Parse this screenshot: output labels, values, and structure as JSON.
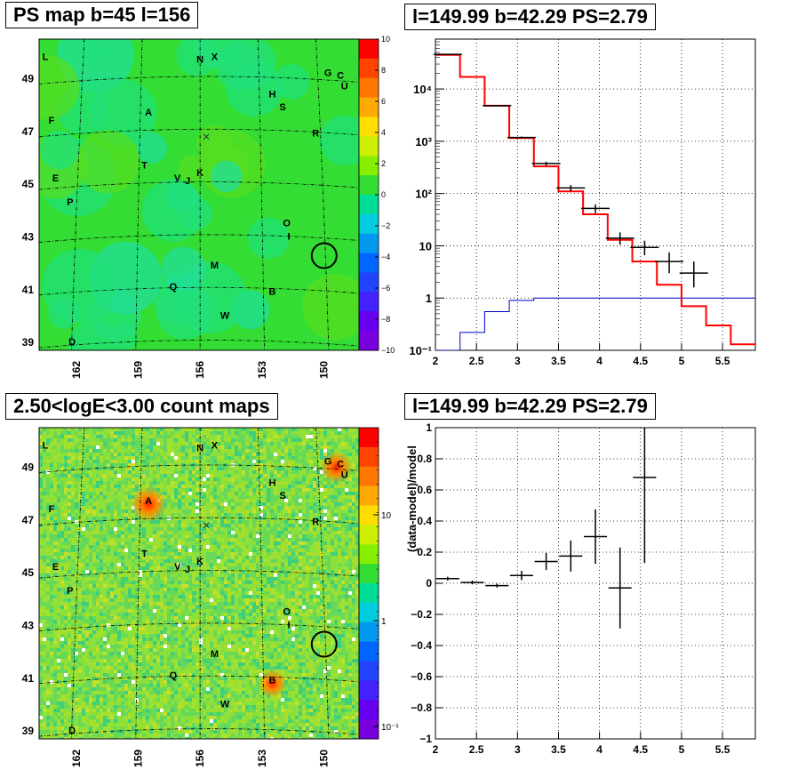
{
  "titles": {
    "map1": "PS map b=45 l=156",
    "spec": "l=149.99 b=42.29 PS=2.79",
    "map2": "2.50<logE<3.00 count maps",
    "resid": "l=149.99 b=42.29 PS=2.79"
  },
  "colors": {
    "map_base": "#33dd33",
    "data": "#000000",
    "model": "#ff0000",
    "background": "#0000cc",
    "grid": "#000000"
  },
  "map_axes": {
    "lon_ticks": [
      "162",
      "159",
      "156",
      "153",
      "150"
    ],
    "lat_ticks": [
      "49",
      "47",
      "45",
      "43",
      "41",
      "39"
    ]
  },
  "ps_colorbar": {
    "range": [
      -10,
      10
    ],
    "tick_labels": [
      "10",
      "8",
      "6",
      "4",
      "2",
      "0",
      "−2",
      "−4",
      "−6",
      "−8",
      "−10"
    ]
  },
  "count_colorbar": {
    "scale": "log",
    "tick_labels": [
      "10",
      "1",
      "10⁻¹"
    ]
  },
  "sources": [
    {
      "label": "L",
      "l": 163.5,
      "b": 49.7
    },
    {
      "label": "N",
      "l": 156.0,
      "b": 49.6
    },
    {
      "label": "X",
      "l": 155.3,
      "b": 49.7
    },
    {
      "label": "G",
      "l": 149.8,
      "b": 49.1
    },
    {
      "label": "C",
      "l": 149.2,
      "b": 49.0
    },
    {
      "label": "U",
      "l": 149.0,
      "b": 48.6
    },
    {
      "label": "H",
      "l": 152.5,
      "b": 48.3
    },
    {
      "label": "S",
      "l": 152.0,
      "b": 47.8
    },
    {
      "label": "A",
      "l": 158.5,
      "b": 47.6
    },
    {
      "label": "F",
      "l": 163.2,
      "b": 47.3
    },
    {
      "label": "R",
      "l": 150.4,
      "b": 46.8
    },
    {
      "label": "T",
      "l": 158.7,
      "b": 45.6
    },
    {
      "label": "V",
      "l": 157.1,
      "b": 45.1
    },
    {
      "label": "J",
      "l": 156.6,
      "b": 45.0
    },
    {
      "label": "K",
      "l": 156.0,
      "b": 45.3
    },
    {
      "label": "E",
      "l": 163.0,
      "b": 45.1
    },
    {
      "label": "P",
      "l": 162.3,
      "b": 44.2
    },
    {
      "label": "O",
      "l": 151.8,
      "b": 43.4
    },
    {
      "label": "I",
      "l": 151.7,
      "b": 42.9
    },
    {
      "label": "M",
      "l": 155.3,
      "b": 41.8
    },
    {
      "label": "Q",
      "l": 157.3,
      "b": 41.0
    },
    {
      "label": "B",
      "l": 152.5,
      "b": 40.8
    },
    {
      "label": "W",
      "l": 154.8,
      "b": 39.9
    },
    {
      "label": "D",
      "l": 162.2,
      "b": 38.9
    }
  ],
  "target_circle": {
    "l": 149.99,
    "b": 42.29
  },
  "chart_data": [
    {
      "type": "line",
      "name": "spectrum",
      "xlim": [
        2,
        5.9
      ],
      "ylim": [
        0.1,
        90000
      ],
      "yscale": "log",
      "x_ticks": [
        "2",
        "2.5",
        "3",
        "3.5",
        "4",
        "4.5",
        "5",
        "5.5"
      ],
      "y_ticks": [
        "10⁻¹",
        "1",
        "10",
        "10²",
        "10³",
        "10⁴"
      ],
      "grid": true,
      "bin_edges": [
        2.0,
        2.3,
        2.6,
        2.9,
        3.2,
        3.5,
        3.8,
        4.1,
        4.4,
        4.7,
        5.0,
        5.3,
        5.6,
        5.9
      ],
      "model_values": [
        45000,
        17000,
        4800,
        1150,
        330,
        110,
        40,
        13,
        5,
        1.8,
        0.7,
        0.3,
        0.13
      ],
      "background_values": [
        0.08,
        0.22,
        0.55,
        0.9,
        1.0,
        1.0,
        1.0,
        1.0,
        1.0,
        1.0,
        1.0,
        1.0,
        1.0
      ],
      "data_points": [
        {
          "x": 2.15,
          "y": 46000,
          "yerr_lo": 45000,
          "yerr_hi": 47000
        },
        {
          "x": 2.75,
          "y": 4800,
          "yerr_lo": 4700,
          "yerr_hi": 4900
        },
        {
          "x": 3.05,
          "y": 1180,
          "yerr_lo": 1130,
          "yerr_hi": 1230
        },
        {
          "x": 3.35,
          "y": 375,
          "yerr_lo": 345,
          "yerr_hi": 405
        },
        {
          "x": 3.65,
          "y": 128,
          "yerr_lo": 112,
          "yerr_hi": 145
        },
        {
          "x": 3.95,
          "y": 52,
          "yerr_lo": 42,
          "yerr_hi": 62
        },
        {
          "x": 4.25,
          "y": 14,
          "yerr_lo": 10.5,
          "yerr_hi": 18
        },
        {
          "x": 4.55,
          "y": 9.3,
          "yerr_lo": 6.6,
          "yerr_hi": 12.5
        },
        {
          "x": 4.85,
          "y": 5,
          "yerr_lo": 3,
          "yerr_hi": 7.5
        },
        {
          "x": 5.15,
          "y": 3,
          "yerr_lo": 1.6,
          "yerr_hi": 5
        }
      ]
    },
    {
      "type": "scatter",
      "name": "residuals",
      "xlim": [
        2,
        5.9
      ],
      "ylim": [
        -1,
        1
      ],
      "x_ticks": [
        "2",
        "2.5",
        "3",
        "3.5",
        "4",
        "4.5",
        "5",
        "5.5"
      ],
      "y_ticks": [
        "1",
        "0.8",
        "0.6",
        "0.4",
        "0.2",
        "0",
        "−0.2",
        "−0.4",
        "−0.6",
        "−0.8",
        "−1"
      ],
      "ylabel": "(data-model)/model",
      "grid": true,
      "data_points": [
        {
          "x": 2.15,
          "y": 0.03,
          "yerr": 0.012
        },
        {
          "x": 2.45,
          "y": 0.005,
          "yerr": 0.012
        },
        {
          "x": 2.75,
          "y": -0.015,
          "yerr": 0.012
        },
        {
          "x": 3.05,
          "y": 0.05,
          "yerr": 0.03
        },
        {
          "x": 3.35,
          "y": 0.14,
          "yerr": 0.055
        },
        {
          "x": 3.65,
          "y": 0.175,
          "yerr": 0.1
        },
        {
          "x": 3.95,
          "y": 0.3,
          "yerr": 0.175
        },
        {
          "x": 4.25,
          "y": -0.03,
          "yerr": 0.26
        },
        {
          "x": 4.55,
          "y": 0.68,
          "yerr": 0.55
        }
      ]
    }
  ]
}
